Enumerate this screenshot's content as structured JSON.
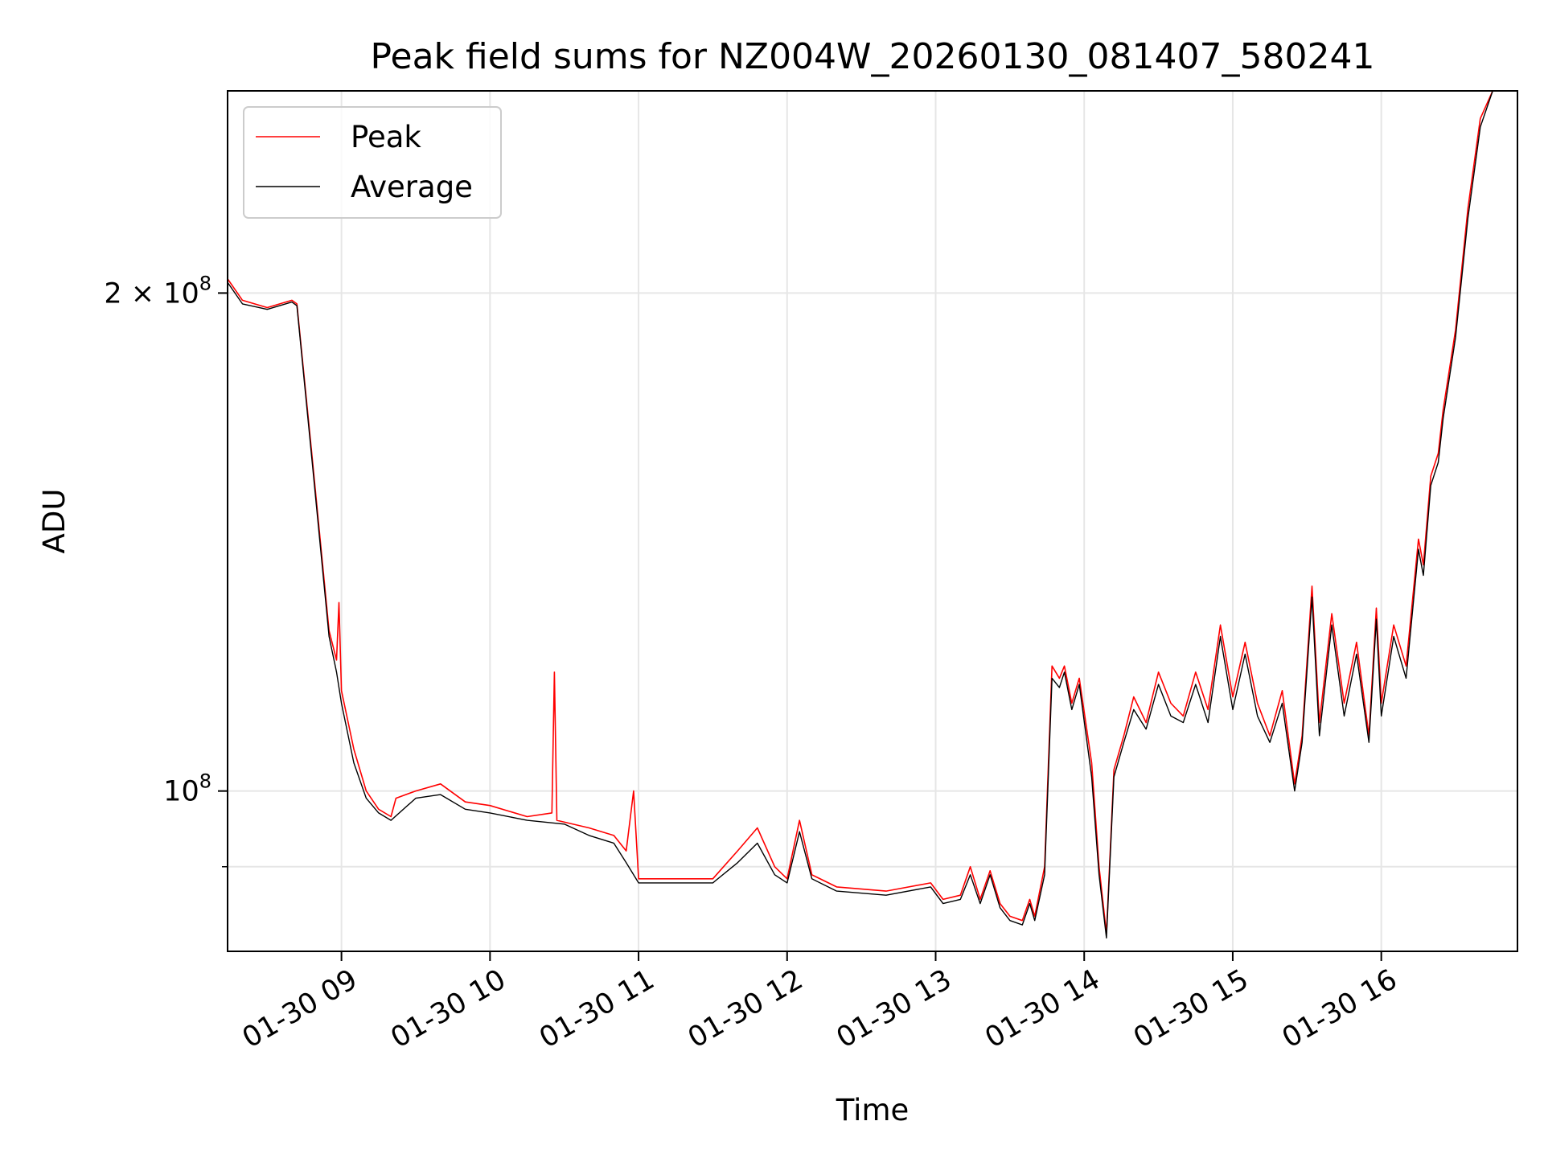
{
  "chart_data": {
    "type": "line",
    "title": "Peak field sums for NZ004W_20260130_081407_580241",
    "xlabel": "Time",
    "ylabel": "ADU",
    "x_unit": "datetime",
    "xlim": [
      "2026-01-30 08:14",
      "2026-01-30 16:55"
    ],
    "ylim": [
      80000000,
      265000000
    ],
    "y_scale": "log",
    "x_ticks": [
      {
        "value": "2026-01-30 09:00",
        "label": "01-30 09"
      },
      {
        "value": "2026-01-30 10:00",
        "label": "01-30 10"
      },
      {
        "value": "2026-01-30 11:00",
        "label": "01-30 11"
      },
      {
        "value": "2026-01-30 12:00",
        "label": "01-30 12"
      },
      {
        "value": "2026-01-30 13:00",
        "label": "01-30 13"
      },
      {
        "value": "2026-01-30 14:00",
        "label": "01-30 14"
      },
      {
        "value": "2026-01-30 15:00",
        "label": "01-30 15"
      },
      {
        "value": "2026-01-30 16:00",
        "label": "01-30 16"
      }
    ],
    "y_ticks": [
      {
        "value": 100000000,
        "label": "10",
        "sup": "8"
      },
      {
        "value": 200000000,
        "label": "2 × 10",
        "sup": "8"
      }
    ],
    "y_minor_ticks": [
      90000000
    ],
    "grid": true,
    "legend": {
      "position": "top-left",
      "entries": [
        "Peak",
        "Average"
      ]
    },
    "series": [
      {
        "name": "Peak",
        "color": "#ff0000",
        "x": [
          "2026-01-30 08:14",
          "2026-01-30 08:20",
          "2026-01-30 08:30",
          "2026-01-30 08:40",
          "2026-01-30 08:42",
          "2026-01-30 08:48",
          "2026-01-30 08:55",
          "2026-01-30 08:58",
          "2026-01-30 08:59",
          "2026-01-30 09:00",
          "2026-01-30 09:05",
          "2026-01-30 09:10",
          "2026-01-30 09:15",
          "2026-01-30 09:20",
          "2026-01-30 09:22",
          "2026-01-30 09:30",
          "2026-01-30 09:40",
          "2026-01-30 09:50",
          "2026-01-30 10:00",
          "2026-01-30 10:15",
          "2026-01-30 10:25",
          "2026-01-30 10:26",
          "2026-01-30 10:27",
          "2026-01-30 10:40",
          "2026-01-30 10:50",
          "2026-01-30 10:55",
          "2026-01-30 10:58",
          "2026-01-30 11:00",
          "2026-01-30 11:30",
          "2026-01-30 11:40",
          "2026-01-30 11:48",
          "2026-01-30 11:55",
          "2026-01-30 12:00",
          "2026-01-30 12:05",
          "2026-01-30 12:10",
          "2026-01-30 12:20",
          "2026-01-30 12:40",
          "2026-01-30 12:58",
          "2026-01-30 13:03",
          "2026-01-30 13:10",
          "2026-01-30 13:14",
          "2026-01-30 13:18",
          "2026-01-30 13:22",
          "2026-01-30 13:26",
          "2026-01-30 13:30",
          "2026-01-30 13:35",
          "2026-01-30 13:38",
          "2026-01-30 13:40",
          "2026-01-30 13:44",
          "2026-01-30 13:47",
          "2026-01-30 13:50",
          "2026-01-30 13:52",
          "2026-01-30 13:55",
          "2026-01-30 13:58",
          "2026-01-30 14:03",
          "2026-01-30 14:06",
          "2026-01-30 14:09",
          "2026-01-30 14:12",
          "2026-01-30 14:16",
          "2026-01-30 14:20",
          "2026-01-30 14:25",
          "2026-01-30 14:30",
          "2026-01-30 14:35",
          "2026-01-30 14:40",
          "2026-01-30 14:45",
          "2026-01-30 14:50",
          "2026-01-30 14:55",
          "2026-01-30 15:00",
          "2026-01-30 15:05",
          "2026-01-30 15:10",
          "2026-01-30 15:15",
          "2026-01-30 15:20",
          "2026-01-30 15:25",
          "2026-01-30 15:28",
          "2026-01-30 15:32",
          "2026-01-30 15:35",
          "2026-01-30 15:40",
          "2026-01-30 15:45",
          "2026-01-30 15:50",
          "2026-01-30 15:55",
          "2026-01-30 15:58",
          "2026-01-30 16:00",
          "2026-01-30 16:05",
          "2026-01-30 16:10",
          "2026-01-30 16:15",
          "2026-01-30 16:17",
          "2026-01-30 16:20",
          "2026-01-30 16:23",
          "2026-01-30 16:25",
          "2026-01-30 16:30",
          "2026-01-30 16:35",
          "2026-01-30 16:40",
          "2026-01-30 16:45",
          "2026-01-30 16:50",
          "2026-01-30 16:55"
        ],
        "values": [
          204000000,
          198000000,
          196000000,
          198000000,
          197000000,
          160000000,
          125000000,
          120000000,
          130000000,
          115000000,
          106000000,
          100000000,
          97500000,
          96500000,
          99000000,
          100000000,
          101000000,
          98500000,
          98000000,
          96500000,
          97000000,
          118000000,
          96000000,
          95000000,
          94000000,
          92000000,
          100000000,
          88500000,
          88500000,
          92000000,
          95000000,
          90000000,
          88500000,
          96000000,
          89000000,
          87500000,
          87000000,
          88000000,
          86000000,
          86500000,
          90000000,
          86000000,
          89500000,
          85500000,
          84000000,
          83500000,
          86000000,
          84000000,
          90000000,
          119000000,
          117000000,
          119000000,
          113000000,
          117000000,
          104000000,
          90000000,
          82000000,
          103000000,
          108000000,
          114000000,
          110000000,
          118000000,
          113000000,
          111000000,
          118000000,
          112000000,
          126000000,
          114000000,
          123000000,
          113000000,
          108000000,
          115000000,
          101000000,
          108000000,
          133000000,
          110000000,
          128000000,
          113000000,
          123000000,
          108000000,
          129000000,
          113000000,
          126000000,
          119000000,
          142000000,
          137000000,
          155000000,
          160000000,
          170000000,
          190000000,
          225000000,
          255000000,
          265000000,
          265000000,
          265000000
        ]
      },
      {
        "name": "Average",
        "color": "#000000",
        "x": [
          "2026-01-30 08:14",
          "2026-01-30 08:20",
          "2026-01-30 08:30",
          "2026-01-30 08:40",
          "2026-01-30 08:42",
          "2026-01-30 08:48",
          "2026-01-30 08:55",
          "2026-01-30 08:58",
          "2026-01-30 09:00",
          "2026-01-30 09:05",
          "2026-01-30 09:10",
          "2026-01-30 09:15",
          "2026-01-30 09:20",
          "2026-01-30 09:30",
          "2026-01-30 09:40",
          "2026-01-30 09:50",
          "2026-01-30 10:00",
          "2026-01-30 10:15",
          "2026-01-30 10:30",
          "2026-01-30 10:40",
          "2026-01-30 10:50",
          "2026-01-30 10:55",
          "2026-01-30 11:00",
          "2026-01-30 11:30",
          "2026-01-30 11:40",
          "2026-01-30 11:48",
          "2026-01-30 11:55",
          "2026-01-30 12:00",
          "2026-01-30 12:05",
          "2026-01-30 12:10",
          "2026-01-30 12:20",
          "2026-01-30 12:40",
          "2026-01-30 12:58",
          "2026-01-30 13:03",
          "2026-01-30 13:10",
          "2026-01-30 13:14",
          "2026-01-30 13:18",
          "2026-01-30 13:22",
          "2026-01-30 13:26",
          "2026-01-30 13:30",
          "2026-01-30 13:35",
          "2026-01-30 13:38",
          "2026-01-30 13:40",
          "2026-01-30 13:44",
          "2026-01-30 13:47",
          "2026-01-30 13:50",
          "2026-01-30 13:52",
          "2026-01-30 13:55",
          "2026-01-30 13:58",
          "2026-01-30 14:03",
          "2026-01-30 14:06",
          "2026-01-30 14:09",
          "2026-01-30 14:12",
          "2026-01-30 14:16",
          "2026-01-30 14:20",
          "2026-01-30 14:25",
          "2026-01-30 14:30",
          "2026-01-30 14:35",
          "2026-01-30 14:40",
          "2026-01-30 14:45",
          "2026-01-30 14:50",
          "2026-01-30 14:55",
          "2026-01-30 15:00",
          "2026-01-30 15:05",
          "2026-01-30 15:10",
          "2026-01-30 15:15",
          "2026-01-30 15:20",
          "2026-01-30 15:25",
          "2026-01-30 15:28",
          "2026-01-30 15:32",
          "2026-01-30 15:35",
          "2026-01-30 15:40",
          "2026-01-30 15:45",
          "2026-01-30 15:50",
          "2026-01-30 15:55",
          "2026-01-30 15:58",
          "2026-01-30 16:00",
          "2026-01-30 16:05",
          "2026-01-30 16:10",
          "2026-01-30 16:15",
          "2026-01-30 16:17",
          "2026-01-30 16:20",
          "2026-01-30 16:23",
          "2026-01-30 16:25",
          "2026-01-30 16:30",
          "2026-01-30 16:35",
          "2026-01-30 16:40",
          "2026-01-30 16:45",
          "2026-01-30 16:50",
          "2026-01-30 16:55"
        ],
        "values": [
          203000000,
          197000000,
          195500000,
          197500000,
          196500000,
          159000000,
          124000000,
          118000000,
          113000000,
          104000000,
          99000000,
          97000000,
          96000000,
          99000000,
          99500000,
          97500000,
          97000000,
          96000000,
          95500000,
          94000000,
          93000000,
          90500000,
          88000000,
          88000000,
          90500000,
          93000000,
          89000000,
          88000000,
          94500000,
          88500000,
          87000000,
          86500000,
          87500000,
          85500000,
          86000000,
          89000000,
          85500000,
          89000000,
          85000000,
          83500000,
          83000000,
          85500000,
          83500000,
          89000000,
          117000000,
          115500000,
          118000000,
          112000000,
          116000000,
          102000000,
          89000000,
          81500000,
          102000000,
          107000000,
          112000000,
          109000000,
          116000000,
          111000000,
          110000000,
          116000000,
          110000000,
          124000000,
          112000000,
          121000000,
          111000000,
          107000000,
          113000000,
          100000000,
          107000000,
          131000000,
          108000000,
          126000000,
          111000000,
          121000000,
          107000000,
          127000000,
          111000000,
          124000000,
          117000000,
          140000000,
          135000000,
          153000000,
          158000000,
          168000000,
          188000000,
          222000000,
          252000000,
          265000000,
          265000000,
          265000000
        ]
      }
    ]
  }
}
